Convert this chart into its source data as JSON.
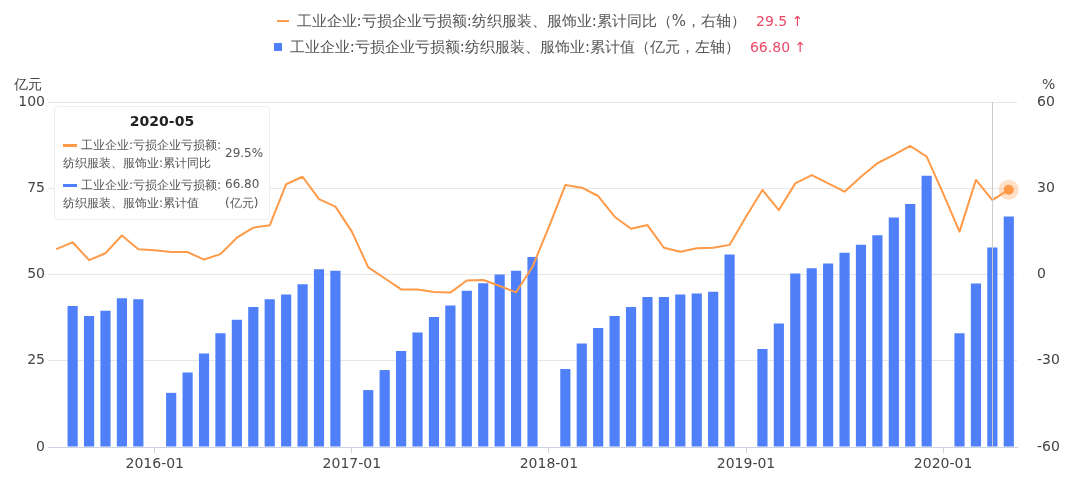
{
  "chart_data": {
    "type": "bar",
    "categories": [
      null,
      null,
      null,
      null,
      null,
      null,
      "2016-01",
      null,
      null,
      null,
      null,
      null,
      null,
      null,
      null,
      null,
      null,
      null,
      "2017-01",
      null,
      null,
      null,
      null,
      null,
      null,
      null,
      null,
      null,
      null,
      null,
      "2018-01",
      null,
      null,
      null,
      null,
      null,
      null,
      null,
      null,
      null,
      null,
      null,
      "2019-01",
      null,
      null,
      null,
      null,
      null,
      null,
      null,
      null,
      null,
      null,
      null,
      "2020-01",
      null,
      null,
      null,
      null
    ],
    "series": [
      {
        "name": "工业企业:亏损企业亏损额:纺织服装、服饰业:累计同比（%，右轴）",
        "type": "line",
        "axis": "y2",
        "color": "#ff9a48",
        "values": [
          8.8,
          11.2,
          5.0,
          7.4,
          13.6,
          8.8,
          8.4,
          7.8,
          7.8,
          5.2,
          7.1,
          12.8,
          16.3,
          17.1,
          31.4,
          34.0,
          26.2,
          23.6,
          14.9,
          2.5,
          -1.3,
          -5.2,
          -5.2,
          -6.1,
          -6.3,
          -2.1,
          -1.9,
          -4.0,
          -6.2,
          2.7,
          16.6,
          31.1,
          30.2,
          27.3,
          20.1,
          15.9,
          17.2,
          9.3,
          7.9,
          9.1,
          9.3,
          10.3,
          20.1,
          29.4,
          22.4,
          31.7,
          34.6,
          31.7,
          28.8,
          34.0,
          38.7,
          41.6,
          44.7,
          41.0,
          28.2,
          14.9,
          32.9,
          25.9,
          29.5
        ]
      },
      {
        "name": "工业企业:亏损企业亏损额:纺织服装、服饰业:累计值（亿元，左轴）",
        "color": "#4f80fa",
        "values": [
          null,
          40.9,
          38.0,
          39.5,
          43.1,
          42.8,
          null,
          15.7,
          21.6,
          27.1,
          33.0,
          36.9,
          40.6,
          42.8,
          44.2,
          47.2,
          51.5,
          51.1,
          null,
          16.5,
          22.3,
          27.8,
          33.2,
          37.7,
          41.0,
          45.3,
          47.5,
          50.0,
          51.1,
          55.1,
          null,
          22.6,
          30.0,
          34.5,
          38.0,
          40.6,
          43.5,
          43.5,
          44.2,
          44.5,
          45.0,
          55.8,
          null,
          28.4,
          35.8,
          50.3,
          51.8,
          53.2,
          56.3,
          58.6,
          61.4,
          66.5,
          70.4,
          78.6,
          null,
          33.0,
          47.4,
          57.8,
          66.8
        ]
      }
    ],
    "ylabel": "亿元",
    "y2label": "%",
    "ylim": [
      0,
      100
    ],
    "yticks": [
      0,
      25,
      50,
      75,
      100
    ],
    "y2lim": [
      -60,
      60
    ],
    "y2ticks": [
      -60,
      -30,
      0,
      30,
      60
    ],
    "grid": "y",
    "legend": "top",
    "marker": "none",
    "line_style": "solid",
    "annotations": [
      "29.5 ↑",
      "66.80 ↑",
      "2020-05",
      "工业企业:亏损企业亏损额:",
      "纺织服装、服饰业:累计同比",
      "29.5%",
      "工业企业:亏损企业亏损额:",
      "纺织服装、服饰业:累计值",
      "66.80",
      "(亿元)"
    ]
  }
}
